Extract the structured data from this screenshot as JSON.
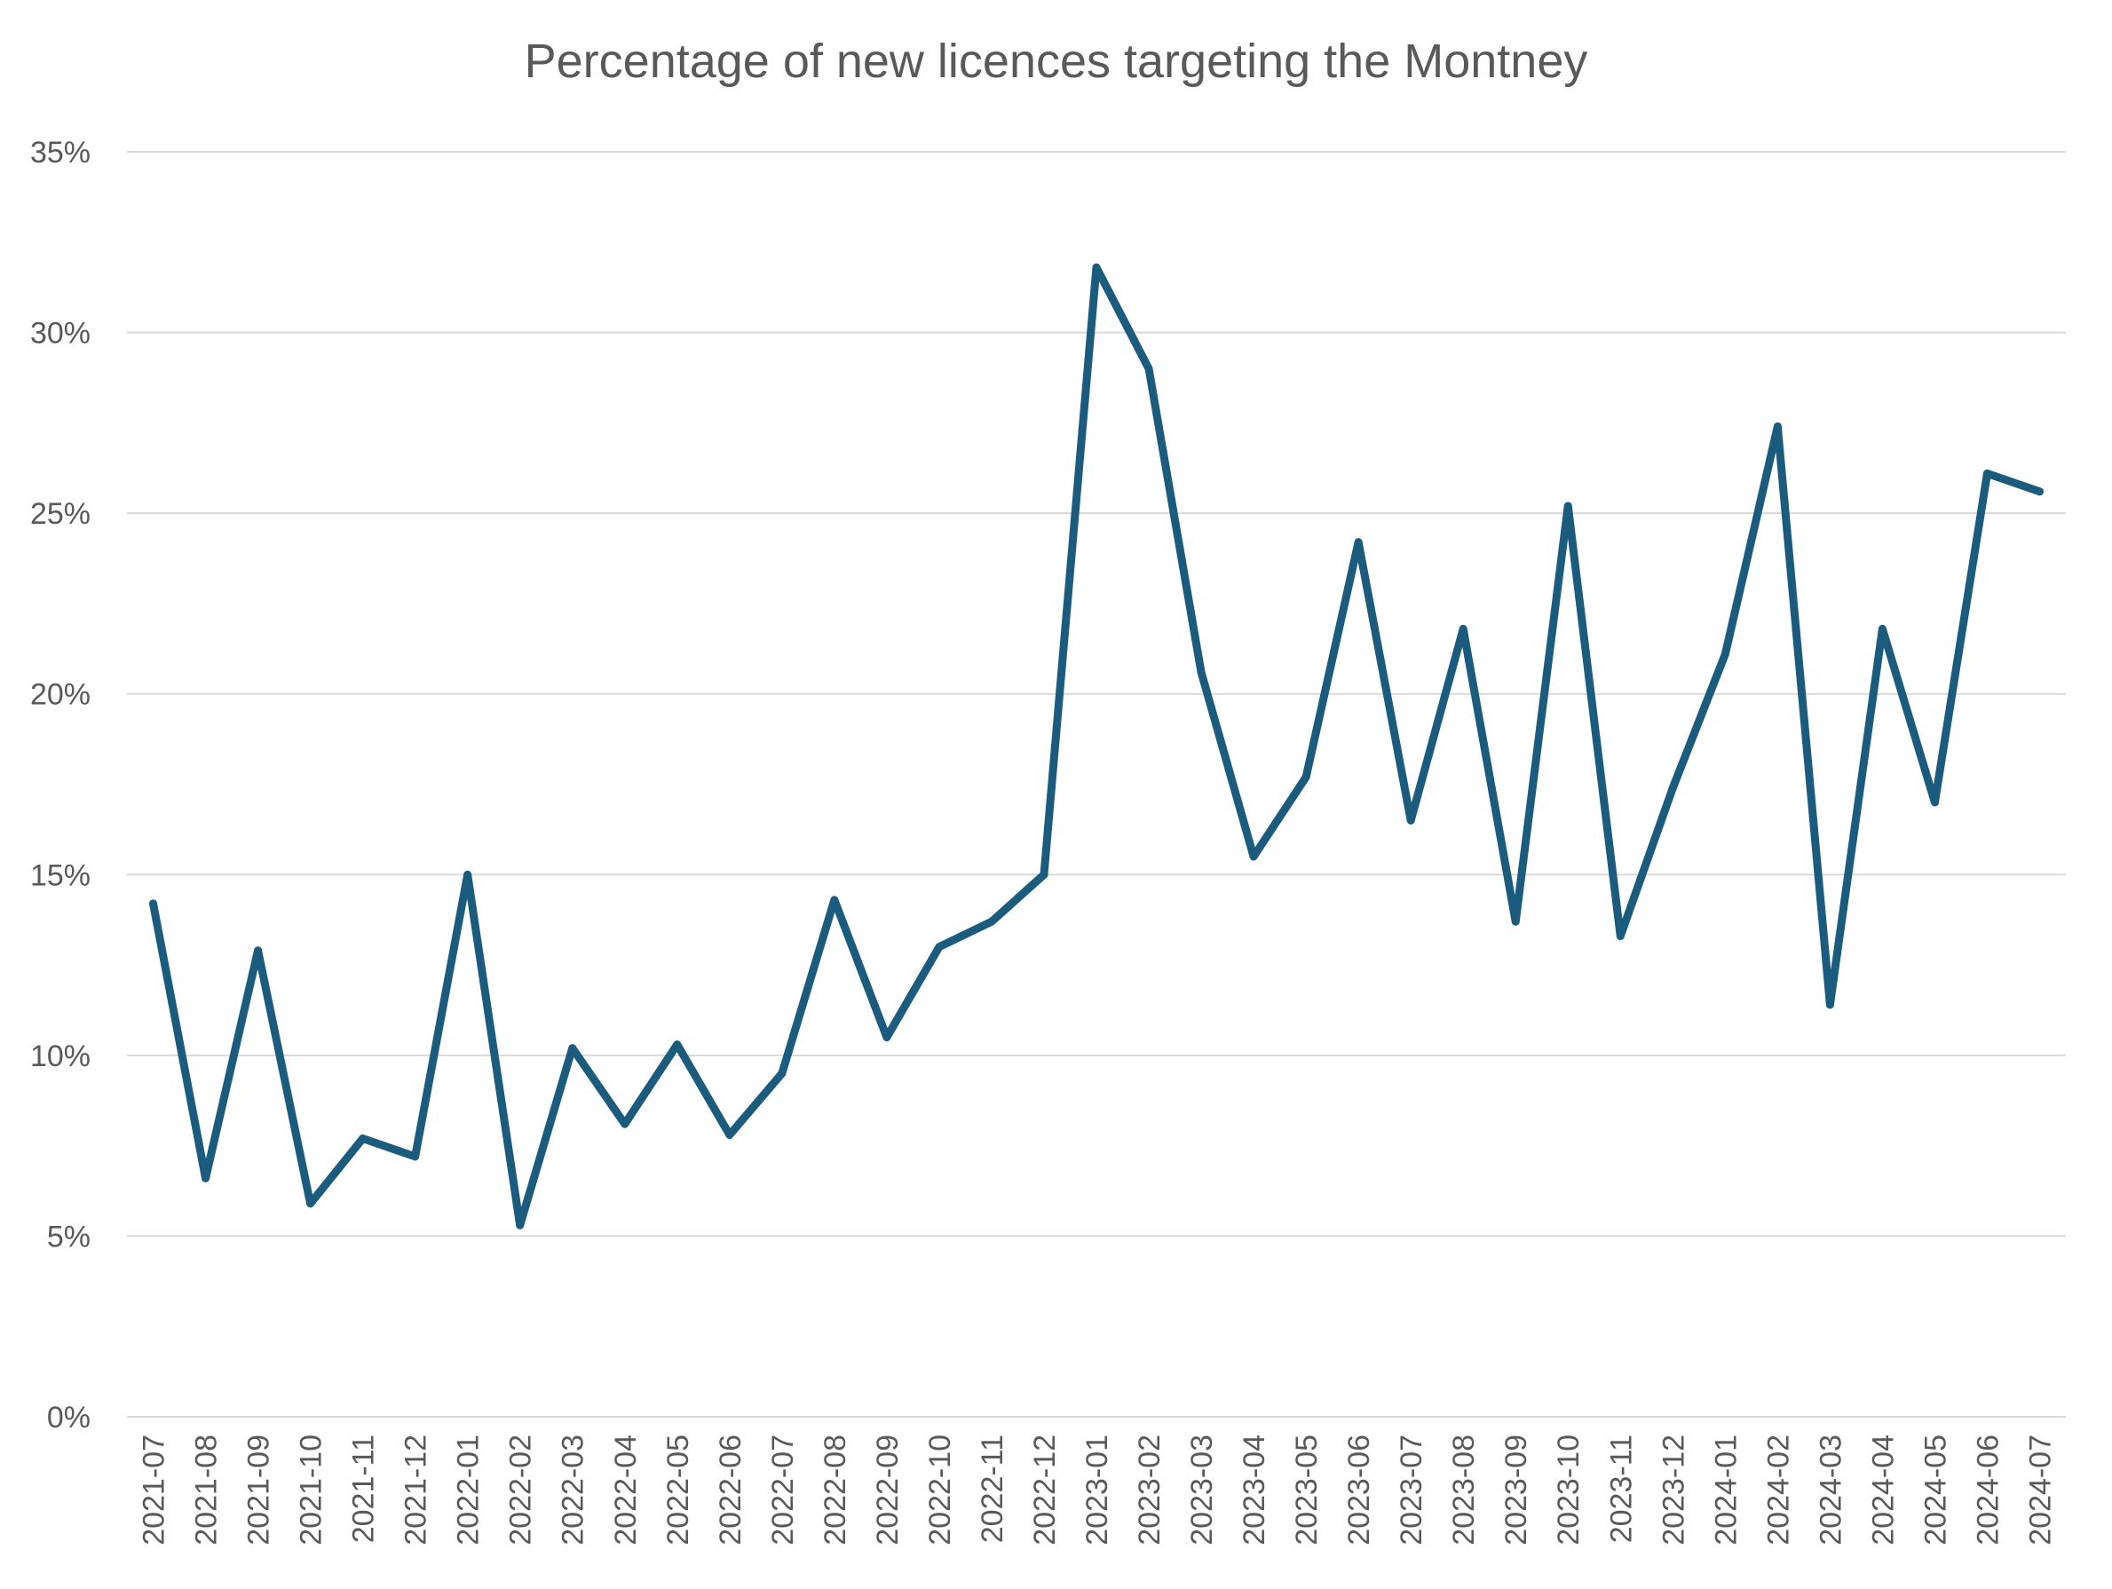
{
  "chart_data": {
    "type": "line",
    "title": "Percentage of new licences targeting the Montney",
    "xlabel": "",
    "ylabel": "",
    "ylim": [
      0,
      35
    ],
    "y_ticks": [
      0,
      5,
      10,
      15,
      20,
      25,
      30,
      35
    ],
    "y_tick_labels": [
      "0%",
      "5%",
      "10%",
      "15%",
      "20%",
      "25%",
      "30%",
      "35%"
    ],
    "grid": true,
    "legend": "none",
    "categories": [
      "2021-07",
      "2021-08",
      "2021-09",
      "2021-10",
      "2021-11",
      "2021-12",
      "2022-01",
      "2022-02",
      "2022-03",
      "2022-04",
      "2022-05",
      "2022-06",
      "2022-07",
      "2022-08",
      "2022-09",
      "2022-10",
      "2022-11",
      "2022-12",
      "2023-01",
      "2023-02",
      "2023-03",
      "2023-04",
      "2023-05",
      "2023-06",
      "2023-07",
      "2023-08",
      "2023-09",
      "2023-10",
      "2023-11",
      "2023-12",
      "2024-01",
      "2024-02",
      "2024-03",
      "2024-04",
      "2024-05",
      "2024-06",
      "2024-07"
    ],
    "series": [
      {
        "color": "#1b5c7e",
        "values": [
          14.2,
          6.6,
          12.9,
          5.9,
          7.7,
          7.2,
          15.0,
          5.3,
          10.2,
          8.1,
          10.3,
          7.8,
          9.5,
          14.3,
          10.5,
          13.0,
          13.7,
          15.0,
          31.8,
          29.0,
          20.6,
          15.5,
          17.7,
          24.2,
          16.5,
          21.8,
          13.7,
          25.2,
          13.3,
          17.4,
          21.1,
          27.4,
          11.4,
          21.8,
          17.0,
          26.1,
          25.6
        ]
      }
    ]
  }
}
